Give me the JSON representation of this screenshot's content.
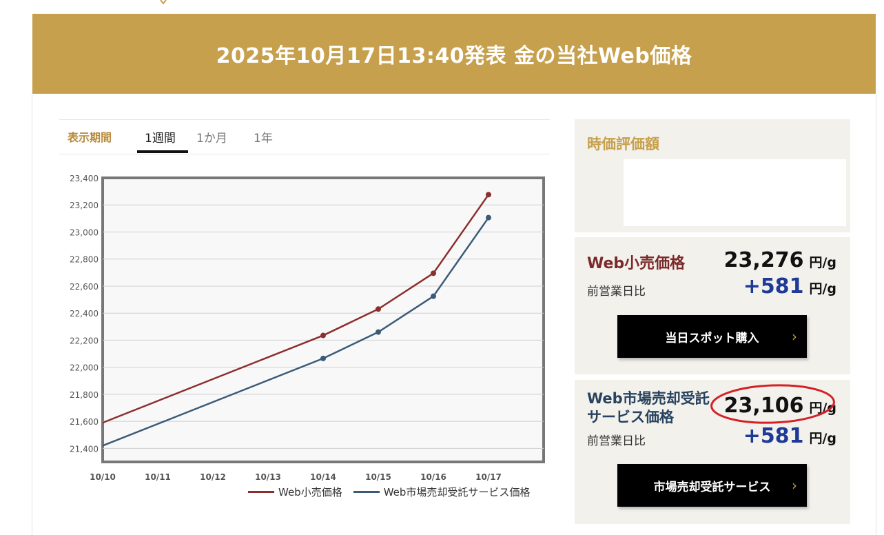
{
  "header": {
    "title": "2025年10月17日13:40発表 金の当社Web価格"
  },
  "tabs": {
    "label": "表示期間",
    "items": [
      "1週間",
      "1か月",
      "1年"
    ],
    "active": "1週間"
  },
  "chart_data": {
    "type": "line",
    "categories": [
      "10/10",
      "10/11",
      "10/12",
      "10/13",
      "10/14",
      "10/15",
      "10/16",
      "10/17"
    ],
    "ylim": [
      21300,
      23400
    ],
    "yticks": [
      "23,400",
      "23,200",
      "23,000",
      "22,800",
      "22,600",
      "22,400",
      "22,200",
      "22,000",
      "21,800",
      "21,600",
      "21,400"
    ],
    "grid": true,
    "legend_position": "bottom-right",
    "series": [
      {
        "name": "Web小売価格",
        "color": "#8b2e2e",
        "points": [
          {
            "x": "10/10",
            "y": 21590
          },
          {
            "x": "10/14",
            "y": 22235
          },
          {
            "x": "10/15",
            "y": 22430
          },
          {
            "x": "10/16",
            "y": 22695
          },
          {
            "x": "10/17",
            "y": 23276
          }
        ]
      },
      {
        "name": "Web市場売却受託サービス価格",
        "color": "#3a5a78",
        "points": [
          {
            "x": "10/10",
            "y": 21420
          },
          {
            "x": "10/14",
            "y": 22065
          },
          {
            "x": "10/15",
            "y": 22260
          },
          {
            "x": "10/16",
            "y": 22525
          },
          {
            "x": "10/17",
            "y": 23106
          }
        ]
      }
    ]
  },
  "valuation": {
    "title": "時価評価額"
  },
  "retail": {
    "title": "Web小売価格",
    "price": "23,276",
    "unit": "円/g",
    "diff_label": "前営業日比",
    "diff": "+581",
    "diff_unit": "円/g",
    "button": "当日スポット購入",
    "chevron": "›"
  },
  "market": {
    "title_line1": "Web市場売却受託",
    "title_line2": "サービス価格",
    "price": "23,106",
    "unit": "円/g",
    "diff_label": "前営業日比",
    "diff": "+581",
    "diff_unit": "円/g",
    "button": "市場売却受託サービス",
    "chevron": "›"
  },
  "colors": {
    "gold": "#c6a04c",
    "retail": "#8b2e2e",
    "market": "#3a5a78",
    "highlight": "#d61f26"
  }
}
